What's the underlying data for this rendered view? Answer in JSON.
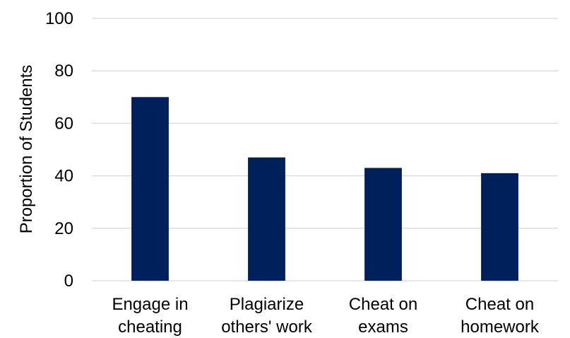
{
  "chart_data": {
    "type": "bar",
    "title": "",
    "xlabel": "",
    "ylabel": "Proportion of Students",
    "categories": [
      [
        "Engage in",
        "cheating"
      ],
      [
        "Plagiarize",
        "others' work"
      ],
      [
        "Cheat on",
        "exams"
      ],
      [
        "Cheat on",
        "homework"
      ]
    ],
    "values": [
      70,
      47,
      43,
      41
    ],
    "ylim": [
      0,
      100
    ],
    "yticks": [
      0,
      20,
      40,
      60,
      80,
      100
    ],
    "grid": true,
    "legend": "none",
    "bar_color": "#00205b"
  }
}
